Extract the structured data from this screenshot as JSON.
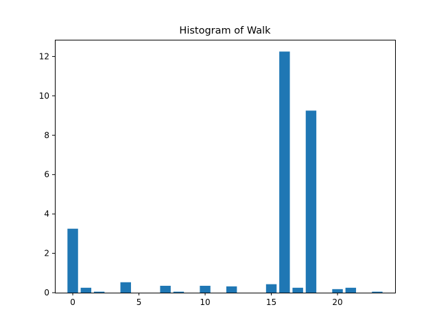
{
  "chart_data": {
    "type": "bar",
    "title": "Histogram of Walk",
    "xlabel": "",
    "ylabel": "",
    "x": [
      0,
      1,
      2,
      4,
      7,
      8,
      10,
      12,
      15,
      16,
      17,
      18,
      20,
      21,
      23
    ],
    "values": [
      3.25,
      0.25,
      0.05,
      0.53,
      0.35,
      0.05,
      0.35,
      0.32,
      0.43,
      12.25,
      0.25,
      9.25,
      0.18,
      0.25,
      0.05
    ],
    "xlim": [
      -1.35,
      24.35
    ],
    "ylim": [
      0,
      12.85
    ],
    "xticks": [
      0,
      5,
      10,
      15,
      20
    ],
    "yticks": [
      0,
      2,
      4,
      6,
      8,
      10,
      12
    ],
    "bar_color": "#1f77b4",
    "grid": false
  }
}
